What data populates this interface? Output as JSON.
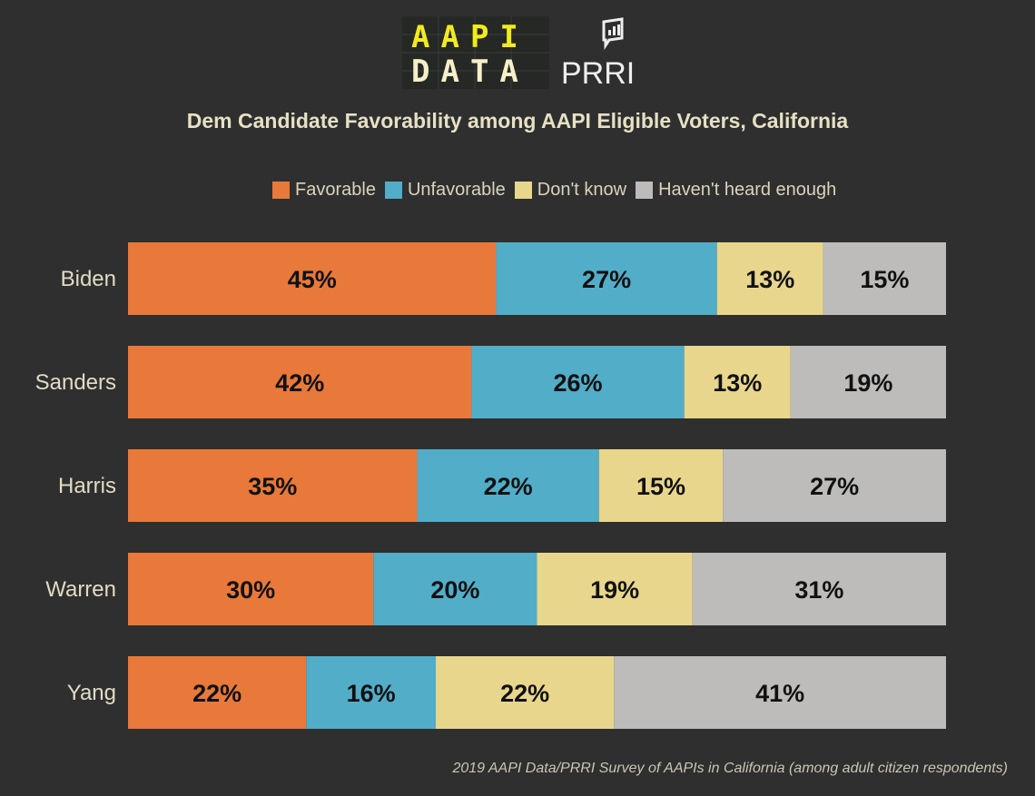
{
  "logo": {
    "line1": "AAPI",
    "line2": "DATA",
    "partner": "PRRI"
  },
  "chart_data": {
    "type": "bar",
    "orientation": "horizontal",
    "stacked": true,
    "title": "Dem Candidate Favorability among AAPI Eligible Voters, California",
    "categories": [
      "Biden",
      "Sanders",
      "Harris",
      "Warren",
      "Yang"
    ],
    "series": [
      {
        "name": "Favorable",
        "color": "#e8793a",
        "values": [
          45,
          42,
          35,
          30,
          22
        ]
      },
      {
        "name": "Unfavorable",
        "color": "#52adc8",
        "values": [
          27,
          26,
          22,
          20,
          16
        ]
      },
      {
        "name": "Don't know",
        "color": "#e8d68c",
        "values": [
          13,
          13,
          15,
          19,
          22
        ]
      },
      {
        "name": "Haven't heard enough",
        "color": "#bdbcba",
        "values": [
          15,
          19,
          27,
          31,
          41
        ]
      }
    ],
    "value_format": "percent",
    "legend": "top",
    "grid": false,
    "source": "2019 AAPI Data/PRRI Survey of AAPIs in California (among adult citizen respondents)"
  }
}
